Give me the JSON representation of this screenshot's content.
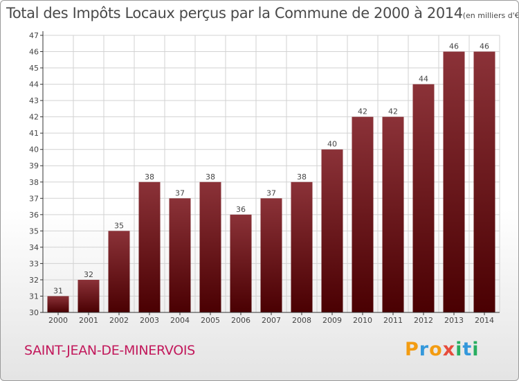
{
  "header": {
    "title": "Total des Impôts Locaux perçus par la Commune de 2000 à 2014",
    "subtitle": "(en milliers d'€)"
  },
  "commune": {
    "name": "SAINT-JEAN-DE-MINERVOIS"
  },
  "logo": {
    "text": "Proxiti",
    "letters": [
      {
        "char": "P",
        "color": "#f39c12"
      },
      {
        "char": "r",
        "color": "#3498db"
      },
      {
        "char": "o",
        "color": "#f39c12"
      },
      {
        "char": "x",
        "color": "#e74c3c"
      },
      {
        "char": "i",
        "color": "#27ae60"
      },
      {
        "char": "t",
        "color": "#3498db"
      },
      {
        "char": "i",
        "color": "#27ae60"
      }
    ]
  },
  "colors": {
    "bar_top": "#8b3238",
    "bar_bottom": "#4a0002",
    "grid": "#d2d2d2",
    "axis": "#333333",
    "text": "#444444"
  },
  "chart_data": {
    "type": "bar",
    "title": "Total des Impôts Locaux perçus par la Commune de 2000 à 2014",
    "xlabel": "",
    "ylabel": "",
    "categories": [
      "2000",
      "2001",
      "2002",
      "2003",
      "2004",
      "2005",
      "2006",
      "2007",
      "2008",
      "2009",
      "2010",
      "2011",
      "2012",
      "2013",
      "2014"
    ],
    "values": [
      31,
      32,
      35,
      38,
      37,
      38,
      36,
      37,
      38,
      40,
      42,
      42,
      44,
      46,
      46
    ],
    "ylim": [
      30,
      47
    ],
    "yticks": [
      30,
      31,
      32,
      33,
      34,
      35,
      36,
      37,
      38,
      39,
      40,
      41,
      42,
      43,
      44,
      45,
      46,
      47
    ],
    "grid": true,
    "data_labels": true
  }
}
